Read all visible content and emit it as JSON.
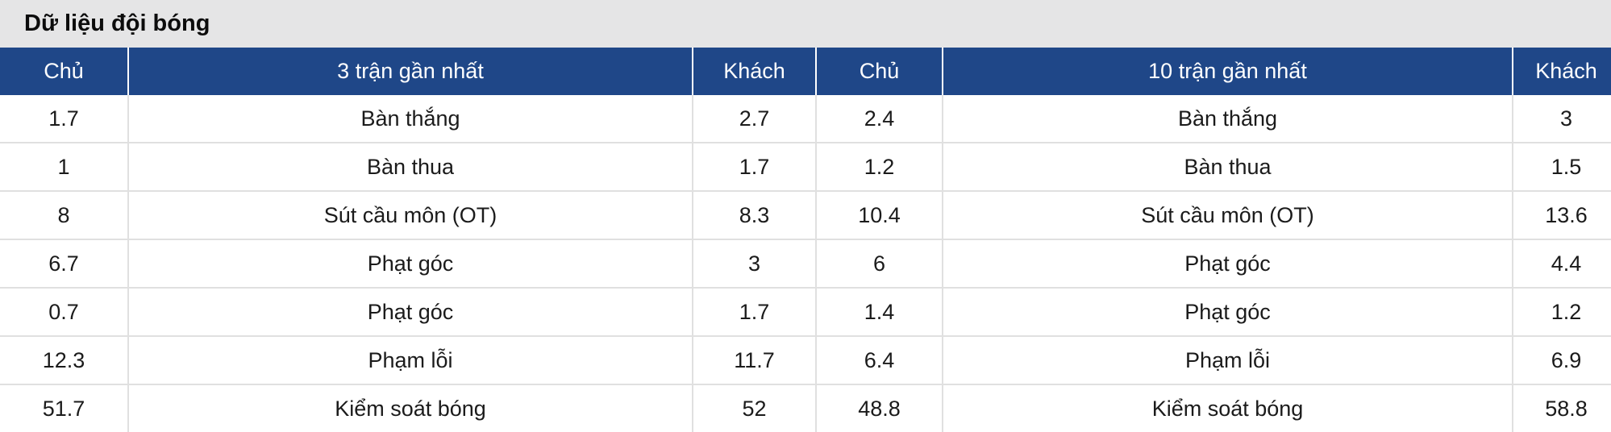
{
  "panel": {
    "title": "Dữ liệu đội bóng"
  },
  "table": {
    "headers": [
      "Chủ",
      "3 trận gần nhất",
      "Khách",
      "Chủ",
      "10 trận gần nhất",
      "Khách"
    ],
    "column_types": [
      "value",
      "label",
      "value",
      "value",
      "label",
      "value"
    ],
    "rows": [
      [
        "1.7",
        "Bàn thắng",
        "2.7",
        "2.4",
        "Bàn thắng",
        "3"
      ],
      [
        "1",
        "Bàn thua",
        "1.7",
        "1.2",
        "Bàn thua",
        "1.5"
      ],
      [
        "8",
        "Sút cầu môn (OT)",
        "8.3",
        "10.4",
        "Sút cầu môn (OT)",
        "13.6"
      ],
      [
        "6.7",
        "Phạt góc",
        "3",
        "6",
        "Phạt góc",
        "4.4"
      ],
      [
        "0.7",
        "Phạt góc",
        "1.7",
        "1.4",
        "Phạt góc",
        "1.2"
      ],
      [
        "12.3",
        "Phạm lỗi",
        "11.7",
        "6.4",
        "Phạm lỗi",
        "6.9"
      ],
      [
        "51.7",
        "Kiểm soát bóng",
        "52",
        "48.8",
        "Kiểm soát bóng",
        "58.8"
      ]
    ]
  },
  "colors": {
    "title_bg": "#e5e5e6",
    "header_bg": "#1f4788",
    "header_text": "#ffffff",
    "grid_line": "#e0e0e0"
  }
}
